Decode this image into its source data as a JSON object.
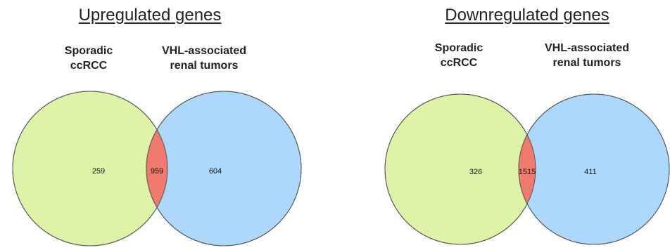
{
  "diagrams": [
    {
      "title": "Upregulated genes",
      "set_a": {
        "line1": "Sporadic",
        "line2": "ccRCC",
        "color": "#ddf4a8"
      },
      "set_b": {
        "line1": "VHL-associated",
        "line2": "renal tumors",
        "color": "#aed8fb"
      },
      "overlap_color": "#f07a6e",
      "only_a": "259",
      "both": "959",
      "only_b": "604"
    },
    {
      "title": "Downregulated genes",
      "set_a": {
        "line1": "Sporadic",
        "line2": "ccRCC",
        "color": "#ddf4a8"
      },
      "set_b": {
        "line1": "VHL-associated",
        "line2": "renal tumors",
        "color": "#aed8fb"
      },
      "overlap_color": "#f07a6e",
      "only_a": "326",
      "both": "1515",
      "only_b": "411"
    }
  ]
}
